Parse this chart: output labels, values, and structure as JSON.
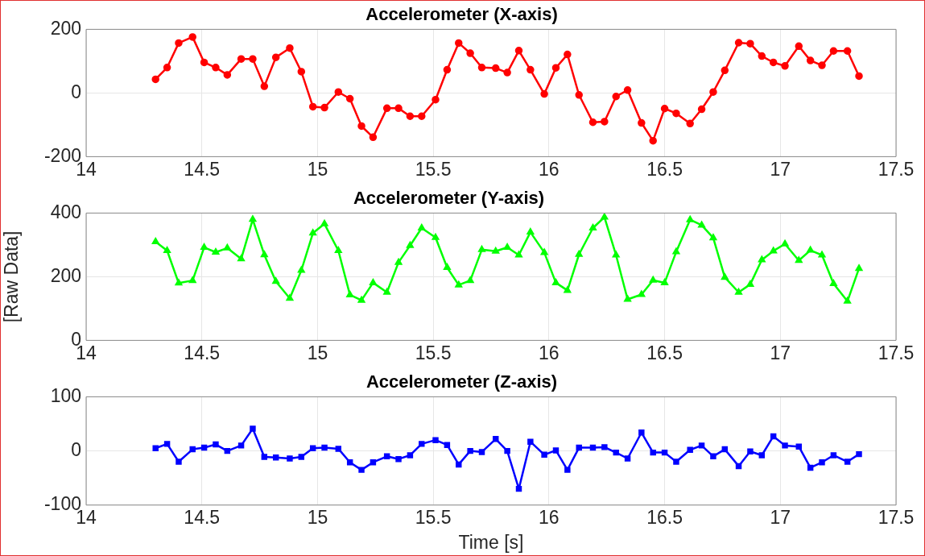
{
  "chart_data": [
    {
      "type": "line",
      "title": "Accelerometer (X-axis)",
      "marker": "circle",
      "grid": true,
      "xlim": [
        14,
        17.5
      ],
      "xticks": [
        14,
        14.5,
        15,
        15.5,
        16,
        16.5,
        17,
        17.5
      ],
      "ylim": [
        -200,
        200
      ],
      "yticks": [
        -200,
        0,
        200
      ],
      "x": [
        14.3,
        14.35,
        14.4,
        14.46,
        14.51,
        14.56,
        14.61,
        14.67,
        14.72,
        14.77,
        14.82,
        14.88,
        14.93,
        14.98,
        15.03,
        15.09,
        15.14,
        15.19,
        15.24,
        15.3,
        15.35,
        15.4,
        15.45,
        15.51,
        15.56,
        15.61,
        15.66,
        15.71,
        15.77,
        15.82,
        15.87,
        15.92,
        15.98,
        16.03,
        16.08,
        16.13,
        16.19,
        16.24,
        16.29,
        16.34,
        16.4,
        16.45,
        16.5,
        16.55,
        16.61,
        16.66,
        16.71,
        16.76,
        16.82,
        16.87,
        16.92,
        16.97,
        17.02,
        17.08,
        17.13,
        17.18,
        17.23,
        17.29,
        17.34
      ],
      "series": [
        {
          "color": "#ff0000",
          "values": [
            43,
            80,
            157,
            176,
            96,
            80,
            57,
            107,
            107,
            21,
            112,
            141,
            67,
            -43,
            -46,
            3,
            -18,
            -104,
            -139,
            -48,
            -48,
            -73,
            -73,
            -21,
            73,
            157,
            125,
            80,
            78,
            64,
            133,
            73,
            -3,
            79,
            121,
            -6,
            -92,
            -90,
            -11,
            9,
            -94,
            -150,
            -49,
            -64,
            -96,
            -51,
            3,
            71,
            158,
            155,
            116,
            96,
            85,
            147,
            102,
            87,
            132,
            132,
            53
          ]
        }
      ]
    },
    {
      "type": "line",
      "title": "Accelerometer (Y-axis)",
      "ylabel": "[Raw Data]",
      "marker": "triangle",
      "grid": true,
      "xlim": [
        14,
        17.5
      ],
      "xticks": [
        14,
        14.5,
        15,
        15.5,
        16,
        16.5,
        17,
        17.5
      ],
      "ylim": [
        0,
        400
      ],
      "yticks": [
        0,
        200,
        400
      ],
      "x": [
        14.3,
        14.35,
        14.4,
        14.46,
        14.51,
        14.56,
        14.61,
        14.67,
        14.72,
        14.77,
        14.82,
        14.88,
        14.93,
        14.98,
        15.03,
        15.09,
        15.14,
        15.19,
        15.24,
        15.3,
        15.35,
        15.4,
        15.45,
        15.51,
        15.56,
        15.61,
        15.66,
        15.71,
        15.77,
        15.82,
        15.87,
        15.92,
        15.98,
        16.03,
        16.08,
        16.13,
        16.19,
        16.24,
        16.29,
        16.34,
        16.4,
        16.45,
        16.5,
        16.55,
        16.61,
        16.66,
        16.71,
        16.76,
        16.82,
        16.87,
        16.92,
        16.97,
        17.02,
        17.08,
        17.13,
        17.18,
        17.23,
        17.29,
        17.34
      ],
      "series": [
        {
          "color": "#00ff00",
          "values": [
            310,
            282,
            180,
            188,
            292,
            277,
            290,
            256,
            380,
            269,
            185,
            132,
            220,
            337,
            366,
            282,
            143,
            126,
            181,
            151,
            245,
            298,
            353,
            323,
            229,
            174,
            188,
            285,
            280,
            292,
            268,
            340,
            276,
            181,
            157,
            270,
            353,
            387,
            268,
            129,
            144,
            189,
            181,
            278,
            379,
            362,
            322,
            198,
            151,
            176,
            253,
            281,
            303,
            251,
            283,
            268,
            178,
            123,
            226
          ]
        }
      ]
    },
    {
      "type": "line",
      "title": "Accelerometer (Z-axis)",
      "xlabel": "Time [s]",
      "marker": "square",
      "grid": true,
      "xlim": [
        14,
        17.5
      ],
      "xticks": [
        14,
        14.5,
        15,
        15.5,
        16,
        16.5,
        17,
        17.5
      ],
      "ylim": [
        -100,
        100
      ],
      "yticks": [
        -100,
        0,
        100
      ],
      "x": [
        14.3,
        14.35,
        14.4,
        14.46,
        14.51,
        14.56,
        14.61,
        14.67,
        14.72,
        14.77,
        14.82,
        14.88,
        14.93,
        14.98,
        15.03,
        15.09,
        15.14,
        15.19,
        15.24,
        15.3,
        15.35,
        15.4,
        15.45,
        15.51,
        15.56,
        15.61,
        15.66,
        15.71,
        15.77,
        15.82,
        15.87,
        15.92,
        15.98,
        16.03,
        16.08,
        16.13,
        16.19,
        16.24,
        16.29,
        16.34,
        16.4,
        16.45,
        16.5,
        16.55,
        16.61,
        16.66,
        16.71,
        16.76,
        16.82,
        16.87,
        16.92,
        16.97,
        17.02,
        17.08,
        17.13,
        17.18,
        17.23,
        17.29,
        17.34
      ],
      "series": [
        {
          "color": "#0000ff",
          "values": [
            5,
            13,
            -20,
            3,
            6,
            12,
            0,
            10,
            41,
            -11,
            -12,
            -14,
            -11,
            5,
            6,
            4,
            -21,
            -35,
            -21,
            -10,
            -15,
            -8,
            13,
            20,
            11,
            -25,
            0,
            -2,
            22,
            0,
            -70,
            17,
            -7,
            1,
            -35,
            6,
            6,
            7,
            -3,
            -14,
            34,
            -3,
            -3,
            -20,
            2,
            10,
            -10,
            3,
            -28,
            -1,
            -8,
            27,
            10,
            8,
            -31,
            -21,
            -8,
            -20,
            -6
          ]
        }
      ]
    }
  ]
}
